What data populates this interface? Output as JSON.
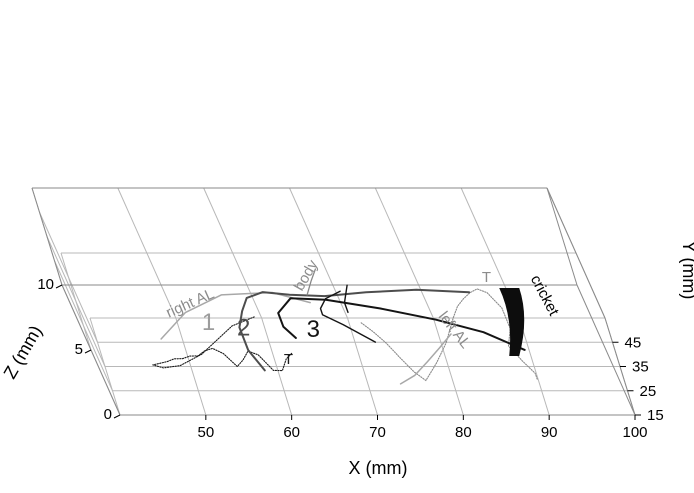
{
  "chart_data": {
    "type": "line",
    "title": "",
    "projection": "3d",
    "axes": {
      "x": {
        "label": "X (mm)",
        "range": [
          40,
          100
        ],
        "ticks": [
          50,
          60,
          70,
          80,
          90,
          100
        ]
      },
      "y": {
        "label": "Y (mm)",
        "range": [
          15,
          55
        ],
        "ticks": [
          15,
          25,
          35,
          45
        ]
      },
      "z": {
        "label": "Z (mm)",
        "range": [
          0,
          10
        ],
        "ticks": [
          0,
          5,
          10
        ]
      }
    },
    "grid": true,
    "labels": {
      "trajectory_1": "1",
      "trajectory_2": "2",
      "trajectory_3": "3",
      "right_antenna": "right AL",
      "left_antenna": "left AL",
      "body": "body",
      "cricket": "cricket",
      "tip_right": "T",
      "tip_left": "T"
    },
    "series": [
      {
        "name": "",
        "style": "dotted-black",
        "points": [
          [
            60,
            34,
            4.0
          ],
          [
            57,
            33,
            3.5
          ],
          [
            52,
            32,
            1.5
          ],
          [
            49,
            30,
            1.0
          ],
          [
            47,
            28,
            1.2
          ],
          [
            46,
            26,
            1.8
          ],
          [
            47,
            24,
            2.3
          ],
          [
            48,
            22,
            2.8
          ],
          [
            49,
            21,
            3.2
          ],
          [
            50,
            20,
            3.4
          ],
          [
            51,
            20,
            3.6
          ],
          [
            52,
            19,
            3.8
          ],
          [
            53,
            20,
            4.0
          ],
          [
            54,
            21,
            4.0
          ],
          [
            55,
            21,
            3.6
          ],
          [
            56,
            20,
            2.8
          ],
          [
            57,
            20,
            3.3
          ],
          [
            58,
            21,
            3.8
          ],
          [
            59,
            21,
            3.5
          ],
          [
            60,
            20,
            2.5
          ],
          [
            61,
            21,
            2.3
          ],
          [
            62,
            22,
            3.0
          ],
          [
            63,
            23,
            3.3
          ]
        ]
      },
      {
        "name": "",
        "style": "dotted-gray",
        "points": [
          [
            72,
            38,
            2.8
          ],
          [
            73,
            36,
            2.5
          ],
          [
            74,
            34,
            2.0
          ],
          [
            75,
            31,
            1.4
          ],
          [
            76,
            28,
            0.9
          ],
          [
            77,
            26,
            0.6
          ],
          [
            78,
            28,
            0.9
          ],
          [
            79,
            30,
            1.2
          ],
          [
            80,
            32,
            1.6
          ],
          [
            81,
            34,
            2.0
          ],
          [
            82,
            36,
            2.6
          ],
          [
            83,
            38,
            3.2
          ],
          [
            84,
            40,
            3.7
          ],
          [
            85,
            42,
            3.9
          ],
          [
            86,
            44,
            4.0
          ],
          [
            87,
            45,
            4.1
          ],
          [
            88,
            44,
            4.0
          ],
          [
            89,
            42,
            3.2
          ],
          [
            89,
            40,
            2.0
          ],
          [
            88,
            37,
            1.2
          ],
          [
            89,
            33,
            0.8
          ],
          [
            90,
            29,
            0.6
          ],
          [
            90,
            27,
            0.5
          ]
        ]
      },
      {
        "name": "",
        "style": "solid-gray",
        "points": [
          [
            48,
            34,
            2.3
          ],
          [
            52,
            39,
            3.4
          ],
          [
            57,
            42,
            4.2
          ],
          [
            63,
            43,
            4.2
          ],
          [
            67,
            41,
            3.8
          ]
        ]
      },
      {
        "name": "",
        "style": "solid-gray-dark",
        "points": [
          [
            59,
            20,
            2.5
          ],
          [
            58,
            23,
            3.5
          ],
          [
            58,
            27,
            4.5
          ],
          [
            59,
            31,
            5.0
          ],
          [
            60,
            37,
            4.9
          ],
          [
            62,
            41,
            4.6
          ],
          [
            65,
            41,
            4.4
          ],
          [
            69,
            41,
            4.3
          ],
          [
            74,
            42,
            4.4
          ],
          [
            80,
            42,
            4.6
          ],
          [
            86,
            42,
            4.4
          ]
        ]
      },
      {
        "name": "",
        "style": "solid-black",
        "points": [
          [
            64,
            28,
            3.5
          ],
          [
            63,
            31,
            3.8
          ],
          [
            63,
            34,
            4.3
          ],
          [
            65,
            39,
            4.5
          ],
          [
            69,
            40,
            4.2
          ],
          [
            75,
            38,
            3.9
          ],
          [
            81,
            35,
            3.6
          ],
          [
            86,
            32,
            3.2
          ],
          [
            90,
            29,
            2.4
          ]
        ]
      },
      {
        "name": "",
        "style": "solid-gray",
        "points": [
          [
            82,
            35,
            2.5
          ],
          [
            80,
            33,
            1.8
          ],
          [
            78,
            30,
            1.3
          ],
          [
            76,
            26,
            1.0
          ],
          [
            74,
            23,
            0.9
          ]
        ]
      },
      {
        "name": "",
        "style": "solid-black-thin",
        "points": [
          [
            73,
            29,
            3.0
          ],
          [
            70,
            33,
            3.6
          ],
          [
            68,
            36,
            3.8
          ],
          [
            68,
            38,
            3.9
          ],
          [
            69,
            41,
            4.1
          ],
          [
            71,
            43,
            4.3
          ]
        ]
      },
      {
        "name": "",
        "style": "solid-gray-thin",
        "points": [
          [
            67,
            42,
            4.2
          ],
          [
            68,
            46,
            4.5
          ],
          [
            69,
            50,
            4.7
          ]
        ]
      },
      {
        "name": "",
        "style": "solid-black-thin",
        "points": [
          [
            71,
            38,
            3.6
          ],
          [
            71,
            41,
            3.8
          ],
          [
            72,
            46,
            4.2
          ]
        ]
      }
    ]
  }
}
